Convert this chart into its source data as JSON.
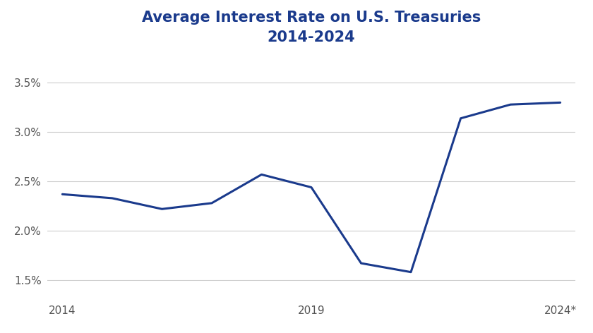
{
  "years": [
    2014,
    2015,
    2016,
    2017,
    2018,
    2019,
    2020,
    2021,
    2022,
    2023,
    2024
  ],
  "x_labels": [
    "2014",
    "",
    "",
    "",
    "",
    "2019",
    "",
    "",
    "",
    "",
    "2024*"
  ],
  "values": [
    0.0237,
    0.0233,
    0.0222,
    0.0228,
    0.0257,
    0.0244,
    0.0167,
    0.0158,
    0.0314,
    0.0328,
    0.033
  ],
  "line_color": "#1a3a8c",
  "line_width": 2.2,
  "title_line1": "Average Interest Rate on U.S. Treasuries",
  "title_line2": "2014-2024",
  "title_color": "#1a3a8c",
  "title_fontsize": 15,
  "subtitle_fontsize": 13,
  "background_color": "#ffffff",
  "ytick_labels": [
    "1.5%",
    "2.0%",
    "2.5%",
    "3.0%",
    "3.5%"
  ],
  "ytick_values": [
    0.015,
    0.02,
    0.025,
    0.03,
    0.035
  ],
  "ylim": [
    0.013,
    0.038
  ],
  "grid_color": "#cccccc",
  "tick_label_color": "#555555",
  "tick_fontsize": 11
}
